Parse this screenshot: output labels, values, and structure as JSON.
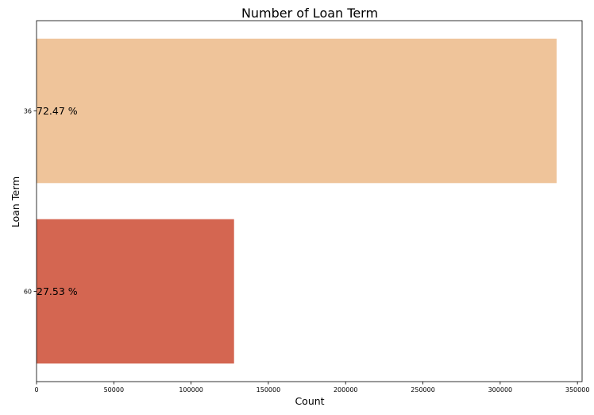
{
  "chart_data": {
    "type": "bar",
    "orientation": "horizontal",
    "title": "Number of Loan Term",
    "xlabel": "Count",
    "ylabel": "Loan Term",
    "categories": [
      "36",
      "60"
    ],
    "values": [
      336500,
      127800
    ],
    "percent_labels": [
      "72.47 %",
      "27.53 %"
    ],
    "colors": [
      "#efc49a",
      "#d46651"
    ],
    "xlim": [
      0,
      353000
    ],
    "xticks": [
      0,
      50000,
      100000,
      150000,
      200000,
      250000,
      300000,
      350000
    ],
    "xtick_labels": [
      "0",
      "50000",
      "100000",
      "150000",
      "200000",
      "250000",
      "300000",
      "350000"
    ],
    "grid": false,
    "legend": "none"
  }
}
